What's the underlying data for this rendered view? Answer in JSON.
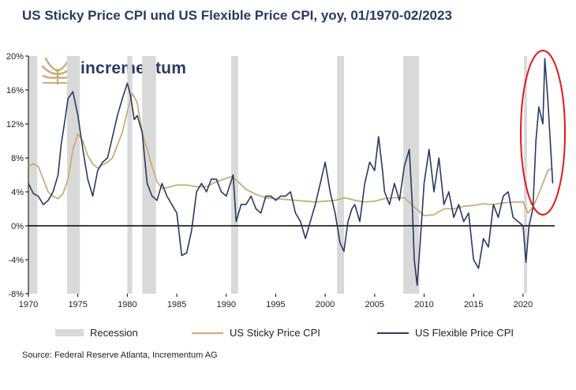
{
  "title": "US Sticky Price CPI und US Flexible Price CPI, yoy, 01/1970-02/2023",
  "source": "Source: Federal Reserve Atlanta, Incrementum AG",
  "logo_text": "incrementum",
  "colors": {
    "sticky": "#c8ae78",
    "flexible": "#283a63",
    "recession": "#d9d9d9",
    "highlight": "#e0191d"
  },
  "chart_data": {
    "type": "line",
    "ylim": [
      -8,
      20
    ],
    "xlim": [
      1970,
      2023.2
    ],
    "y_ticks": [
      20,
      16,
      12,
      8,
      4,
      0,
      -4,
      -8
    ],
    "y_tick_labels": [
      "20%",
      "16%",
      "12%",
      "8%",
      "4%",
      "0%",
      "-4%",
      "-8%"
    ],
    "x_ticks": [
      1970,
      1975,
      1980,
      1985,
      1990,
      1995,
      2000,
      2005,
      2010,
      2015,
      2020
    ],
    "x_tick_labels": [
      "1970",
      "1975",
      "1980",
      "1985",
      "1990",
      "1995",
      "2000",
      "2005",
      "2010",
      "2015",
      "2020"
    ],
    "legend": [
      "Recession",
      "US Sticky Price CPI",
      "US Flexible Price CPI"
    ],
    "recessions": [
      [
        1970.0,
        1970.9
      ],
      [
        1973.9,
        1975.2
      ],
      [
        1980.0,
        1980.5
      ],
      [
        1981.5,
        1982.9
      ],
      [
        1990.5,
        1991.2
      ],
      [
        2001.2,
        2001.9
      ],
      [
        2007.9,
        2009.5
      ],
      [
        2020.1,
        2020.4
      ]
    ],
    "series": [
      {
        "name": "US Sticky Price CPI",
        "x": [
          1970,
          1970.5,
          1971,
          1971.5,
          1972,
          1972.5,
          1973,
          1973.5,
          1974,
          1974.5,
          1975,
          1975.5,
          1976,
          1976.5,
          1977,
          1977.5,
          1978,
          1978.5,
          1979,
          1979.5,
          1980,
          1980.5,
          1981,
          1981.5,
          1982,
          1982.5,
          1983,
          1983.5,
          1984,
          1985,
          1986,
          1987,
          1988,
          1989,
          1990,
          1990.5,
          1991,
          1992,
          1993,
          1994,
          1995,
          1996,
          1997,
          1998,
          1999,
          2000,
          2001,
          2002,
          2003,
          2004,
          2005,
          2006,
          2007,
          2008,
          2009,
          2010,
          2011,
          2012,
          2013,
          2014,
          2015,
          2016,
          2017,
          2018,
          2019,
          2020,
          2020.5,
          2021,
          2021.5,
          2022,
          2022.5,
          2023
        ],
        "y": [
          7.0,
          7.3,
          7.0,
          5.5,
          4.0,
          3.5,
          3.2,
          3.8,
          5.5,
          9.0,
          10.8,
          10.0,
          8.3,
          7.3,
          6.8,
          7.2,
          7.5,
          8.0,
          9.5,
          11.0,
          13.5,
          15.6,
          14.5,
          11.0,
          9.0,
          7.0,
          5.2,
          4.4,
          4.5,
          4.8,
          4.8,
          4.6,
          4.6,
          5.2,
          5.6,
          5.8,
          5.4,
          4.3,
          3.7,
          3.3,
          3.2,
          3.1,
          3.0,
          2.9,
          2.8,
          2.9,
          3.0,
          3.3,
          3.0,
          2.8,
          2.9,
          3.2,
          3.3,
          3.3,
          2.2,
          1.2,
          1.3,
          2.0,
          2.0,
          2.3,
          2.4,
          2.6,
          2.5,
          2.7,
          2.8,
          2.8,
          1.5,
          2.2,
          3.5,
          5.0,
          6.5,
          6.8
        ]
      },
      {
        "name": "US Flexible Price CPI",
        "x": [
          1970,
          1970.5,
          1971,
          1971.5,
          1972,
          1972.5,
          1973,
          1973.3,
          1973.7,
          1974,
          1974.5,
          1975,
          1975.5,
          1976,
          1976.5,
          1977,
          1977.5,
          1978,
          1978.5,
          1979,
          1979.5,
          1980,
          1980.3,
          1980.7,
          1981,
          1981.5,
          1982,
          1982.5,
          1983,
          1983.5,
          1984,
          1984.5,
          1985,
          1985.5,
          1986,
          1986.5,
          1987,
          1987.5,
          1988,
          1988.5,
          1989,
          1989.5,
          1990,
          1990.7,
          1991,
          1991.5,
          1992,
          1992.5,
          1993,
          1993.5,
          1994,
          1994.5,
          1995,
          1995.5,
          1996,
          1996.5,
          1997,
          1997.5,
          1998,
          1998.5,
          1999,
          1999.5,
          2000,
          2000.5,
          2001,
          2001.5,
          2001.9,
          2002.3,
          2002.7,
          2003,
          2003.5,
          2004,
          2004.5,
          2005,
          2005.4,
          2005.8,
          2006,
          2006.5,
          2007,
          2007.5,
          2008,
          2008.5,
          2008.8,
          2009,
          2009.3,
          2009.6,
          2010,
          2010.5,
          2011,
          2011.5,
          2012,
          2012.5,
          2013,
          2013.5,
          2014,
          2014.5,
          2015,
          2015.5,
          2016,
          2016.5,
          2017,
          2017.5,
          2018,
          2018.5,
          2019,
          2019.5,
          2020,
          2020.3,
          2020.6,
          2021,
          2021.3,
          2021.6,
          2022,
          2022.2,
          2022.5,
          2022.8,
          2023
        ],
        "y": [
          5.0,
          3.8,
          3.5,
          2.5,
          3.0,
          4.0,
          6.0,
          9.5,
          12.5,
          15.0,
          15.8,
          13.0,
          9.0,
          5.5,
          3.5,
          6.5,
          7.5,
          8.0,
          10.5,
          13.0,
          15.0,
          16.8,
          15.5,
          12.5,
          13.0,
          11.0,
          5.0,
          3.5,
          3.0,
          5.0,
          3.5,
          2.5,
          1.5,
          -3.5,
          -3.2,
          -0.5,
          4.0,
          5.0,
          4.0,
          5.5,
          5.5,
          4.0,
          3.5,
          6.0,
          0.5,
          2.5,
          2.5,
          3.5,
          2.0,
          1.5,
          3.5,
          3.5,
          3.0,
          3.5,
          3.5,
          4.0,
          1.5,
          0.5,
          -1.5,
          0.5,
          2.5,
          5.0,
          7.5,
          4.0,
          1.5,
          -2.0,
          -3.0,
          0.5,
          2.0,
          2.5,
          0.5,
          5.0,
          7.5,
          6.5,
          10.5,
          6.5,
          4.0,
          2.5,
          5.0,
          3.0,
          7.0,
          9.0,
          2.5,
          -4.0,
          -7.0,
          -2.0,
          5.0,
          9.0,
          4.0,
          8.0,
          2.5,
          4.0,
          1.0,
          2.5,
          0.5,
          1.5,
          -4.0,
          -5.0,
          -1.5,
          -2.5,
          2.5,
          1.0,
          3.5,
          4.0,
          1.0,
          0.5,
          0.0,
          -4.3,
          0.0,
          2.0,
          10.0,
          14.0,
          12.0,
          19.7,
          15.0,
          9.0,
          5.0
        ]
      }
    ]
  }
}
